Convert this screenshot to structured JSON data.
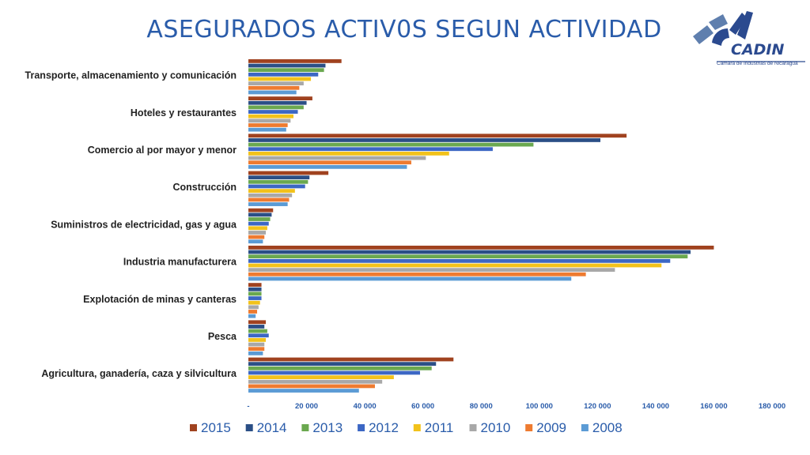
{
  "title": "ASEGURADOS ACTIV0S SEGUN ACTIVIDAD",
  "logo": {
    "name": "CADIN",
    "subtitle": "Cámara de Industrias de Nicaragua"
  },
  "chart_data": {
    "type": "bar",
    "orientation": "horizontal",
    "categories": [
      "Transporte, almacenamiento y comunicación",
      "Hoteles y restaurantes",
      "Comercio al por mayor y menor",
      "Construcción",
      "Suministros de electricidad, gas y agua",
      "Industria manufacturera",
      "Explotación de minas y canteras",
      "Pesca",
      "Agricultura, ganadería, caza y silvicultura"
    ],
    "series": [
      {
        "name": "2015",
        "color": "#a0421f",
        "values": [
          32000,
          22000,
          130000,
          27500,
          8500,
          160000,
          4500,
          6000,
          70500
        ]
      },
      {
        "name": "2014",
        "color": "#2b4f86",
        "values": [
          26500,
          20000,
          121000,
          21000,
          8000,
          152000,
          4500,
          5500,
          64500
        ]
      },
      {
        "name": "2013",
        "color": "#6aa84f",
        "values": [
          26000,
          19000,
          98000,
          20500,
          7500,
          151000,
          4500,
          6500,
          63000
        ]
      },
      {
        "name": "2012",
        "color": "#3c67c4",
        "values": [
          24000,
          17000,
          84000,
          19500,
          7000,
          145000,
          4500,
          7000,
          59000
        ]
      },
      {
        "name": "2011",
        "color": "#f2c21b",
        "values": [
          21500,
          15500,
          69000,
          16000,
          6500,
          142000,
          4000,
          6000,
          50000
        ]
      },
      {
        "name": "2010",
        "color": "#a8a8a8",
        "values": [
          19000,
          14500,
          61000,
          15000,
          6000,
          126000,
          3500,
          5500,
          46000
        ]
      },
      {
        "name": "2009",
        "color": "#ee7b30",
        "values": [
          17500,
          13500,
          56000,
          14000,
          5500,
          116000,
          3000,
          5500,
          43500
        ]
      },
      {
        "name": "2008",
        "color": "#5b9bd5",
        "values": [
          16500,
          13000,
          54500,
          13500,
          5000,
          111000,
          2500,
          5000,
          38000
        ]
      }
    ],
    "xlim": [
      0,
      180000
    ],
    "xticks": [
      0,
      20000,
      40000,
      60000,
      80000,
      100000,
      120000,
      140000,
      160000,
      180000
    ],
    "xtick_labels": [
      "-",
      "20 000",
      "40 000",
      "60 000",
      "80 000",
      "100 000",
      "120 000",
      "140 000",
      "160 000",
      "180 000"
    ],
    "legend_position": "bottom",
    "legend_order": [
      "2015",
      "2014",
      "2013",
      "2012",
      "2011",
      "2010",
      "2009",
      "2008"
    ],
    "grid": false
  }
}
